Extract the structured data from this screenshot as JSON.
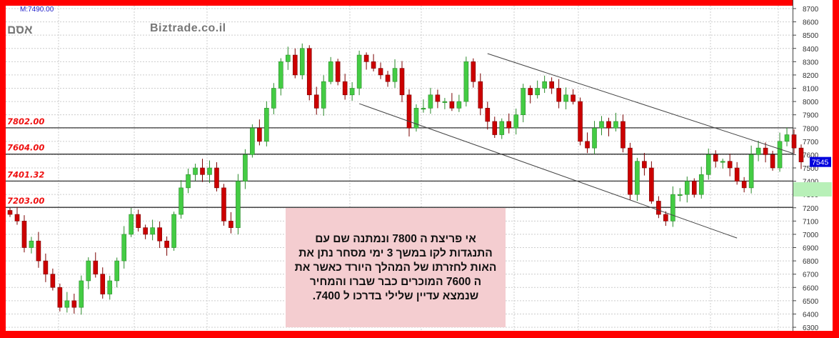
{
  "header": {
    "measure": "M:7490.00",
    "symbol": "אסם",
    "brand": "Biztrade.co.il"
  },
  "annotation": {
    "lines": [
      "אי פריצת  ה 7800   ונמתנה שם  עם",
      "התנגדות לקו  במשך 3 ימי  מסחר  נתן את",
      "האות  לחזרתו של  המהלך היורד  כאשר   את",
      "ה  7600 המוכרים  כבר  שברו והמחיר",
      "שנמצא  עדיין  שלילי     בדרכו  ל  7400."
    ]
  },
  "colors": {
    "up": "#44cc44",
    "down": "#cc0000",
    "frame": "#ff0000",
    "level_label": "#ee1111",
    "last_price_bg": "#0000dd"
  },
  "chart_data": {
    "type": "candlestick",
    "ylim": [
      6300,
      8700
    ],
    "y_ticks": [
      6300,
      6400,
      6500,
      6600,
      6700,
      6800,
      6900,
      7000,
      7100,
      7200,
      7300,
      7400,
      7500,
      7600,
      7700,
      7800,
      7900,
      8000,
      8100,
      8200,
      8300,
      8400,
      8500,
      8600,
      8700
    ],
    "grid": true,
    "closes": [
      7150,
      7100,
      6900,
      6950,
      6800,
      6700,
      6600,
      6450,
      6500,
      6450,
      6650,
      6800,
      6700,
      6550,
      6650,
      6800,
      7000,
      7150,
      7050,
      7000,
      7050,
      6950,
      6900,
      7150,
      7350,
      7450,
      7500,
      7450,
      7500,
      7350,
      7100,
      7050,
      7400,
      7600,
      7800,
      7700,
      7950,
      8100,
      8300,
      8350,
      8200,
      8400,
      8050,
      7950,
      8150,
      8300,
      8150,
      8050,
      8100,
      8350,
      8300,
      8250,
      8200,
      8150,
      8250,
      8050,
      7800,
      7950,
      7950,
      8050,
      8000,
      8000,
      7950,
      8000,
      8300,
      8150,
      7950,
      7850,
      7750,
      7850,
      7800,
      7900,
      8100,
      8050,
      8100,
      8150,
      8100,
      8000,
      8050,
      8000,
      7700,
      7650,
      7800,
      7850,
      7800,
      7850,
      7650,
      7300,
      7550,
      7500,
      7250,
      7150,
      7100,
      7300,
      7300,
      7400,
      7300,
      7450,
      7600,
      7550,
      7550,
      7500,
      7400,
      7350,
      7600,
      7650,
      7600,
      7500,
      7700,
      7750,
      7650,
      7545
    ],
    "levels": [
      {
        "value": 7802,
        "label": "7802.00"
      },
      {
        "value": 7604,
        "label": "7604.00"
      },
      {
        "value": 7401.32,
        "label": "7401.32"
      },
      {
        "value": 7203,
        "label": "7203.00"
      }
    ],
    "trend_lines": [
      {
        "from": [
          67,
          8361
        ],
        "to": [
          110,
          7607
        ]
      },
      {
        "from": [
          49,
          7984
        ],
        "to": [
          102,
          6972
        ]
      }
    ],
    "last_price": "7545"
  }
}
